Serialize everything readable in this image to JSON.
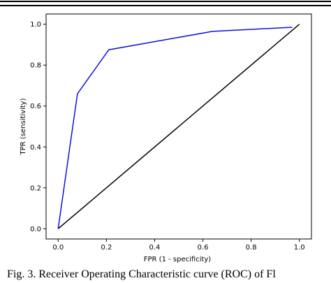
{
  "caption": "Fig. 3. Receiver Operating Characteristic curve (ROC) of Fl",
  "chart_data": {
    "type": "line",
    "xlabel": "FPR (1 - specificity)",
    "ylabel": "TPR (sensitivity)",
    "xlim": [
      -0.05,
      1.05
    ],
    "ylim": [
      -0.05,
      1.05
    ],
    "xticks": [
      "0.0",
      "0.2",
      "0.4",
      "0.6",
      "0.8",
      "1.0"
    ],
    "yticks": [
      "0.0",
      "0.2",
      "0.4",
      "0.6",
      "0.8",
      "1.0"
    ],
    "grid": false,
    "series": [
      {
        "color": "#1010dd",
        "x": [
          0.0,
          0.08,
          0.21,
          0.64,
          0.97
        ],
        "y": [
          0.0,
          0.66,
          0.875,
          0.965,
          0.985
        ]
      },
      {
        "color": "#000000",
        "x": [
          0.0,
          1.0
        ],
        "y": [
          0.0,
          1.0
        ]
      }
    ]
  }
}
